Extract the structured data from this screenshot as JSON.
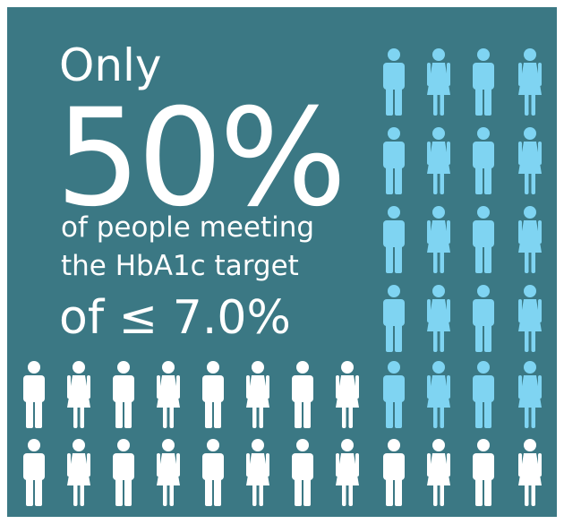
{
  "headline": {
    "lead": "Only",
    "figure": "50%",
    "lines": [
      "of people meeting",
      "the HbA1c target"
    ],
    "threshold": "of ≤ 7.0%"
  }
}
